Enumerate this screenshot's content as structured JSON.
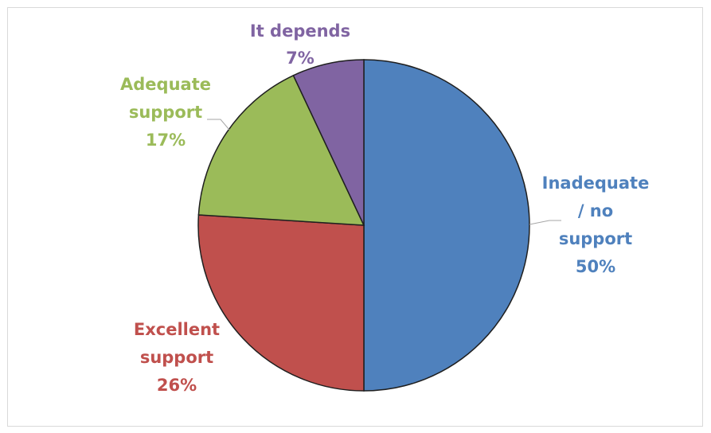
{
  "chart_data": {
    "type": "pie",
    "title": "",
    "legend": "none",
    "start_angle_deg": 0,
    "direction": "clockwise",
    "slices": [
      {
        "category": "Inadequate / no support",
        "label_lines": [
          "Inadequate",
          "/ no",
          "support"
        ],
        "value": 50,
        "value_label": "50%",
        "color": "#4f81bd"
      },
      {
        "category": "Excellent support",
        "label_lines": [
          "Excellent",
          "support"
        ],
        "value": 26,
        "value_label": "26%",
        "color": "#c0504d"
      },
      {
        "category": "Adequate support",
        "label_lines": [
          "Adequate",
          "support"
        ],
        "value": 17,
        "value_label": "17%",
        "color": "#9bbb59"
      },
      {
        "category": "It depends",
        "label_lines": [
          "It depends"
        ],
        "value": 7,
        "value_label": "7%",
        "color": "#8064a2"
      }
    ],
    "label_text_colors": [
      "#4f81bd",
      "#c0504d",
      "#9bbb59",
      "#8064a2"
    ]
  }
}
